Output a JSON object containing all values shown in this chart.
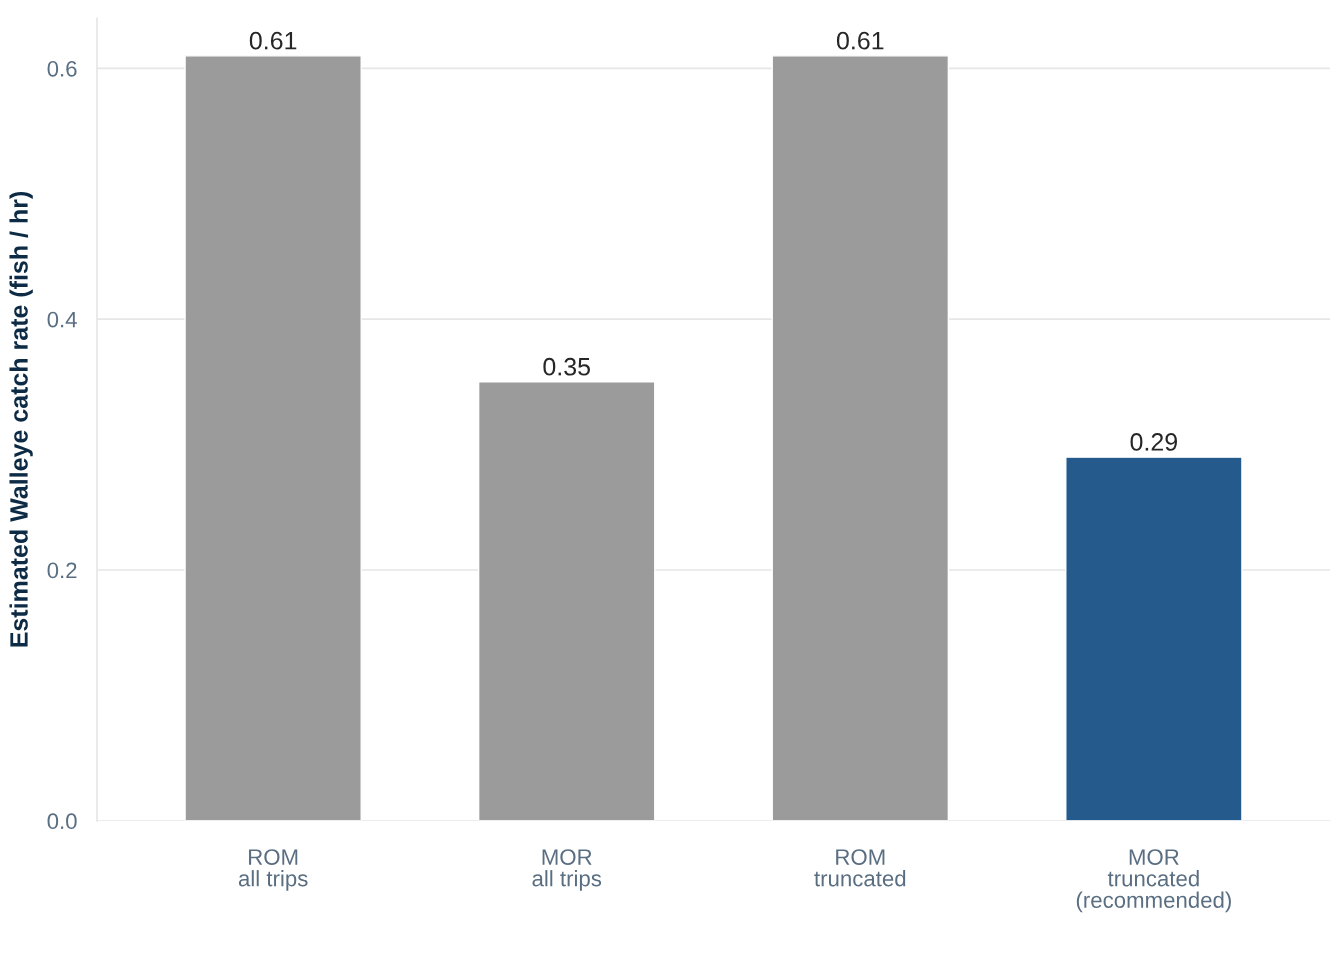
{
  "chart_data": {
    "type": "bar",
    "categories": [
      "ROM\nall trips",
      "MOR\nall trips",
      "ROM\ntruncated",
      "MOR\ntruncated\n(recommended)"
    ],
    "values": [
      0.61,
      0.35,
      0.61,
      0.29
    ],
    "colors": [
      "#9b9b9b",
      "#9b9b9b",
      "#9b9b9b",
      "#255b8c"
    ],
    "ylabel": "Estimated Walleye catch rate (fish / hr)",
    "yticks": [
      {
        "value": 0,
        "label": "0.0"
      },
      {
        "value": 0.2,
        "label": "0.2"
      },
      {
        "value": 0.4,
        "label": "0.4"
      },
      {
        "value": 0.6,
        "label": "0.6"
      }
    ],
    "ylim": [
      0,
      0.64
    ],
    "grid": "y",
    "data_labels": true,
    "legend": false
  }
}
